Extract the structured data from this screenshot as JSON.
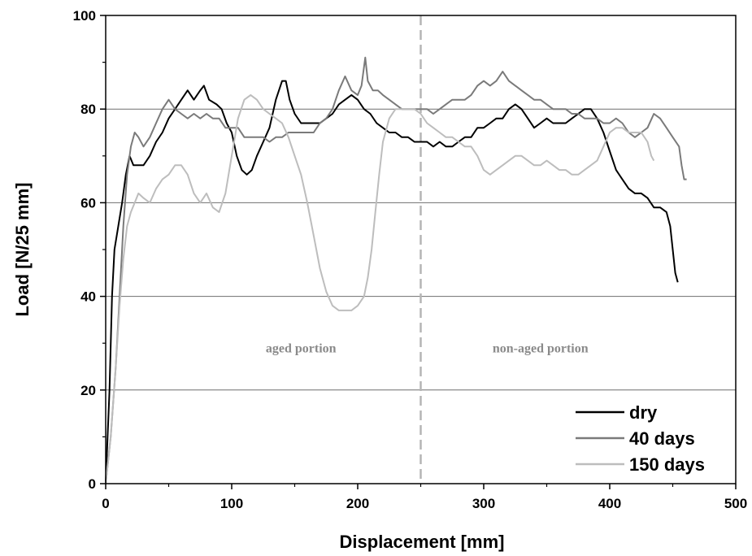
{
  "chart_data": {
    "type": "line",
    "xlabel": "Displacement [mm]",
    "ylabel": "Load [N/25 mm]",
    "xlim": [
      0,
      500
    ],
    "ylim": [
      0,
      100
    ],
    "xticks": [
      0,
      100,
      200,
      300,
      400,
      500
    ],
    "yticks": [
      0,
      20,
      40,
      60,
      80,
      100
    ],
    "grid": "horizontal",
    "legend_position": "bottom-right",
    "divider_x": 250,
    "annotations": [
      {
        "text": "aged portion",
        "x": 155,
        "y": 28
      },
      {
        "text": "non-aged portion",
        "x": 345,
        "y": 28
      }
    ],
    "series": [
      {
        "name": "dry",
        "color": "#000000",
        "points": [
          [
            0,
            0
          ],
          [
            3,
            20
          ],
          [
            5,
            40
          ],
          [
            7,
            50
          ],
          [
            10,
            55
          ],
          [
            13,
            60
          ],
          [
            16,
            66
          ],
          [
            19,
            70
          ],
          [
            22,
            68
          ],
          [
            26,
            68
          ],
          [
            30,
            68
          ],
          [
            35,
            70
          ],
          [
            40,
            73
          ],
          [
            45,
            75
          ],
          [
            50,
            78
          ],
          [
            55,
            80
          ],
          [
            60,
            82
          ],
          [
            65,
            84
          ],
          [
            70,
            82
          ],
          [
            75,
            84
          ],
          [
            78,
            85
          ],
          [
            82,
            82
          ],
          [
            88,
            81
          ],
          [
            92,
            80
          ],
          [
            96,
            77
          ],
          [
            100,
            75
          ],
          [
            104,
            70
          ],
          [
            108,
            67
          ],
          [
            112,
            66
          ],
          [
            116,
            67
          ],
          [
            120,
            70
          ],
          [
            125,
            73
          ],
          [
            130,
            76
          ],
          [
            135,
            82
          ],
          [
            140,
            86
          ],
          [
            143,
            86
          ],
          [
            146,
            82
          ],
          [
            150,
            79
          ],
          [
            155,
            77
          ],
          [
            160,
            77
          ],
          [
            165,
            77
          ],
          [
            170,
            77
          ],
          [
            175,
            78
          ],
          [
            180,
            79
          ],
          [
            185,
            81
          ],
          [
            190,
            82
          ],
          [
            195,
            83
          ],
          [
            200,
            82
          ],
          [
            205,
            80
          ],
          [
            210,
            79
          ],
          [
            215,
            77
          ],
          [
            220,
            76
          ],
          [
            225,
            75
          ],
          [
            230,
            75
          ],
          [
            235,
            74
          ],
          [
            240,
            74
          ],
          [
            245,
            73
          ],
          [
            250,
            73
          ],
          [
            255,
            73
          ],
          [
            260,
            72
          ],
          [
            265,
            73
          ],
          [
            270,
            72
          ],
          [
            275,
            72
          ],
          [
            280,
            73
          ],
          [
            285,
            74
          ],
          [
            290,
            74
          ],
          [
            295,
            76
          ],
          [
            300,
            76
          ],
          [
            305,
            77
          ],
          [
            310,
            78
          ],
          [
            315,
            78
          ],
          [
            320,
            80
          ],
          [
            325,
            81
          ],
          [
            330,
            80
          ],
          [
            335,
            78
          ],
          [
            340,
            76
          ],
          [
            345,
            77
          ],
          [
            350,
            78
          ],
          [
            355,
            77
          ],
          [
            360,
            77
          ],
          [
            365,
            77
          ],
          [
            370,
            78
          ],
          [
            375,
            79
          ],
          [
            380,
            80
          ],
          [
            385,
            80
          ],
          [
            390,
            78
          ],
          [
            395,
            75
          ],
          [
            400,
            71
          ],
          [
            405,
            67
          ],
          [
            410,
            65
          ],
          [
            415,
            63
          ],
          [
            420,
            62
          ],
          [
            425,
            62
          ],
          [
            430,
            61
          ],
          [
            435,
            59
          ],
          [
            440,
            59
          ],
          [
            445,
            58
          ],
          [
            448,
            55
          ],
          [
            450,
            50
          ],
          [
            452,
            45
          ],
          [
            454,
            43
          ]
        ]
      },
      {
        "name": "40 days",
        "color": "#7a7a7a",
        "points": [
          [
            0,
            0
          ],
          [
            4,
            10
          ],
          [
            8,
            25
          ],
          [
            11,
            40
          ],
          [
            14,
            55
          ],
          [
            17,
            66
          ],
          [
            20,
            72
          ],
          [
            23,
            75
          ],
          [
            26,
            74
          ],
          [
            30,
            72
          ],
          [
            35,
            74
          ],
          [
            40,
            77
          ],
          [
            45,
            80
          ],
          [
            50,
            82
          ],
          [
            55,
            80
          ],
          [
            60,
            79
          ],
          [
            65,
            78
          ],
          [
            70,
            79
          ],
          [
            75,
            78
          ],
          [
            80,
            79
          ],
          [
            85,
            78
          ],
          [
            90,
            78
          ],
          [
            95,
            76
          ],
          [
            100,
            76
          ],
          [
            105,
            76
          ],
          [
            110,
            74
          ],
          [
            115,
            74
          ],
          [
            120,
            74
          ],
          [
            125,
            74
          ],
          [
            130,
            73
          ],
          [
            135,
            74
          ],
          [
            140,
            74
          ],
          [
            145,
            75
          ],
          [
            150,
            75
          ],
          [
            155,
            75
          ],
          [
            160,
            75
          ],
          [
            165,
            75
          ],
          [
            170,
            77
          ],
          [
            175,
            78
          ],
          [
            180,
            80
          ],
          [
            185,
            84
          ],
          [
            190,
            87
          ],
          [
            195,
            84
          ],
          [
            200,
            83
          ],
          [
            203,
            85
          ],
          [
            206,
            91
          ],
          [
            208,
            86
          ],
          [
            212,
            84
          ],
          [
            216,
            84
          ],
          [
            220,
            83
          ],
          [
            225,
            82
          ],
          [
            230,
            81
          ],
          [
            235,
            80
          ],
          [
            240,
            80
          ],
          [
            245,
            80
          ],
          [
            250,
            80
          ],
          [
            255,
            80
          ],
          [
            260,
            79
          ],
          [
            265,
            80
          ],
          [
            270,
            81
          ],
          [
            275,
            82
          ],
          [
            280,
            82
          ],
          [
            285,
            82
          ],
          [
            290,
            83
          ],
          [
            295,
            85
          ],
          [
            300,
            86
          ],
          [
            305,
            85
          ],
          [
            310,
            86
          ],
          [
            315,
            88
          ],
          [
            320,
            86
          ],
          [
            325,
            85
          ],
          [
            330,
            84
          ],
          [
            335,
            83
          ],
          [
            340,
            82
          ],
          [
            345,
            82
          ],
          [
            350,
            81
          ],
          [
            355,
            80
          ],
          [
            360,
            80
          ],
          [
            365,
            80
          ],
          [
            370,
            79
          ],
          [
            375,
            79
          ],
          [
            380,
            78
          ],
          [
            385,
            78
          ],
          [
            390,
            78
          ],
          [
            395,
            77
          ],
          [
            400,
            77
          ],
          [
            405,
            78
          ],
          [
            410,
            77
          ],
          [
            415,
            75
          ],
          [
            420,
            74
          ],
          [
            425,
            75
          ],
          [
            430,
            76
          ],
          [
            435,
            79
          ],
          [
            440,
            78
          ],
          [
            445,
            76
          ],
          [
            450,
            74
          ],
          [
            455,
            72
          ],
          [
            457,
            68
          ],
          [
            459,
            65
          ],
          [
            461,
            65
          ]
        ]
      },
      {
        "name": "150 days",
        "color": "#bdbdbd",
        "points": [
          [
            0,
            0
          ],
          [
            4,
            10
          ],
          [
            8,
            25
          ],
          [
            11,
            38
          ],
          [
            14,
            48
          ],
          [
            17,
            55
          ],
          [
            20,
            58
          ],
          [
            23,
            60
          ],
          [
            26,
            62
          ],
          [
            30,
            61
          ],
          [
            35,
            60
          ],
          [
            40,
            63
          ],
          [
            45,
            65
          ],
          [
            50,
            66
          ],
          [
            55,
            68
          ],
          [
            60,
            68
          ],
          [
            65,
            66
          ],
          [
            70,
            62
          ],
          [
            75,
            60
          ],
          [
            80,
            62
          ],
          [
            85,
            59
          ],
          [
            90,
            58
          ],
          [
            95,
            62
          ],
          [
            100,
            70
          ],
          [
            105,
            78
          ],
          [
            110,
            82
          ],
          [
            115,
            83
          ],
          [
            120,
            82
          ],
          [
            125,
            80
          ],
          [
            130,
            79
          ],
          [
            135,
            78
          ],
          [
            140,
            77
          ],
          [
            145,
            74
          ],
          [
            150,
            70
          ],
          [
            155,
            66
          ],
          [
            160,
            60
          ],
          [
            165,
            53
          ],
          [
            170,
            46
          ],
          [
            175,
            41
          ],
          [
            180,
            38
          ],
          [
            185,
            37
          ],
          [
            190,
            37
          ],
          [
            195,
            37
          ],
          [
            200,
            38
          ],
          [
            205,
            40
          ],
          [
            208,
            44
          ],
          [
            211,
            50
          ],
          [
            214,
            58
          ],
          [
            217,
            66
          ],
          [
            220,
            73
          ],
          [
            225,
            78
          ],
          [
            230,
            80
          ],
          [
            235,
            80
          ],
          [
            240,
            80
          ],
          [
            245,
            80
          ],
          [
            250,
            79
          ],
          [
            255,
            77
          ],
          [
            260,
            76
          ],
          [
            265,
            75
          ],
          [
            270,
            74
          ],
          [
            275,
            74
          ],
          [
            280,
            73
          ],
          [
            285,
            72
          ],
          [
            290,
            72
          ],
          [
            295,
            70
          ],
          [
            300,
            67
          ],
          [
            305,
            66
          ],
          [
            310,
            67
          ],
          [
            315,
            68
          ],
          [
            320,
            69
          ],
          [
            325,
            70
          ],
          [
            330,
            70
          ],
          [
            335,
            69
          ],
          [
            340,
            68
          ],
          [
            345,
            68
          ],
          [
            350,
            69
          ],
          [
            355,
            68
          ],
          [
            360,
            67
          ],
          [
            365,
            67
          ],
          [
            370,
            66
          ],
          [
            375,
            66
          ],
          [
            380,
            67
          ],
          [
            385,
            68
          ],
          [
            390,
            69
          ],
          [
            395,
            72
          ],
          [
            400,
            75
          ],
          [
            405,
            76
          ],
          [
            410,
            76
          ],
          [
            415,
            75
          ],
          [
            420,
            75
          ],
          [
            425,
            75
          ],
          [
            430,
            73
          ],
          [
            433,
            70
          ],
          [
            435,
            69
          ]
        ]
      }
    ]
  }
}
